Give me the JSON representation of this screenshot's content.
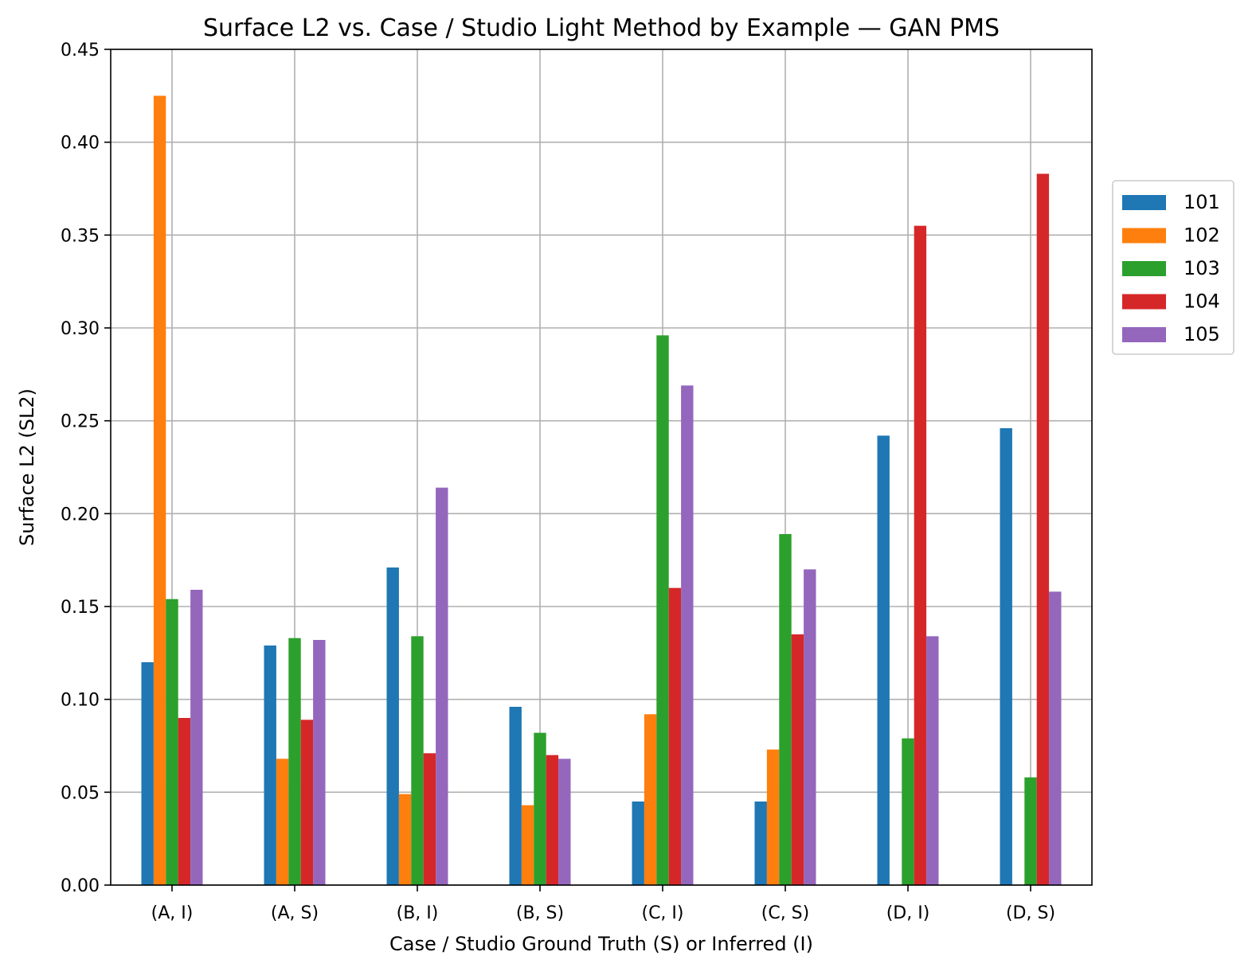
{
  "chart_data": {
    "type": "bar",
    "title": "Surface L2 vs. Case / Studio Light Method by Example — GAN PMS",
    "xlabel": "Case / Studio Ground Truth (S) or Inferred (I)",
    "ylabel": "Surface L2 (SL2)",
    "ylim": [
      0,
      0.45
    ],
    "yticks": [
      "0.00",
      "0.05",
      "0.10",
      "0.15",
      "0.20",
      "0.25",
      "0.30",
      "0.35",
      "0.40",
      "0.45"
    ],
    "grid": true,
    "legend_position": "right",
    "categories": [
      "(A, I)",
      "(A, S)",
      "(B, I)",
      "(B, S)",
      "(C, I)",
      "(C, S)",
      "(D, I)",
      "(D, S)"
    ],
    "series": [
      {
        "name": "101",
        "color": "#1f77b4",
        "values": [
          0.12,
          0.129,
          0.171,
          0.096,
          0.045,
          0.045,
          0.242,
          0.246
        ]
      },
      {
        "name": "102",
        "color": "#ff7f0e",
        "values": [
          0.425,
          0.068,
          0.049,
          0.043,
          0.092,
          0.073,
          0.0,
          0.0
        ]
      },
      {
        "name": "103",
        "color": "#2ca02c",
        "values": [
          0.154,
          0.133,
          0.134,
          0.082,
          0.296,
          0.189,
          0.079,
          0.058
        ]
      },
      {
        "name": "104",
        "color": "#d62728",
        "values": [
          0.09,
          0.089,
          0.071,
          0.07,
          0.16,
          0.135,
          0.355,
          0.383
        ]
      },
      {
        "name": "105",
        "color": "#9467bd",
        "values": [
          0.159,
          0.132,
          0.214,
          0.068,
          0.269,
          0.17,
          0.134,
          0.158
        ]
      }
    ]
  }
}
